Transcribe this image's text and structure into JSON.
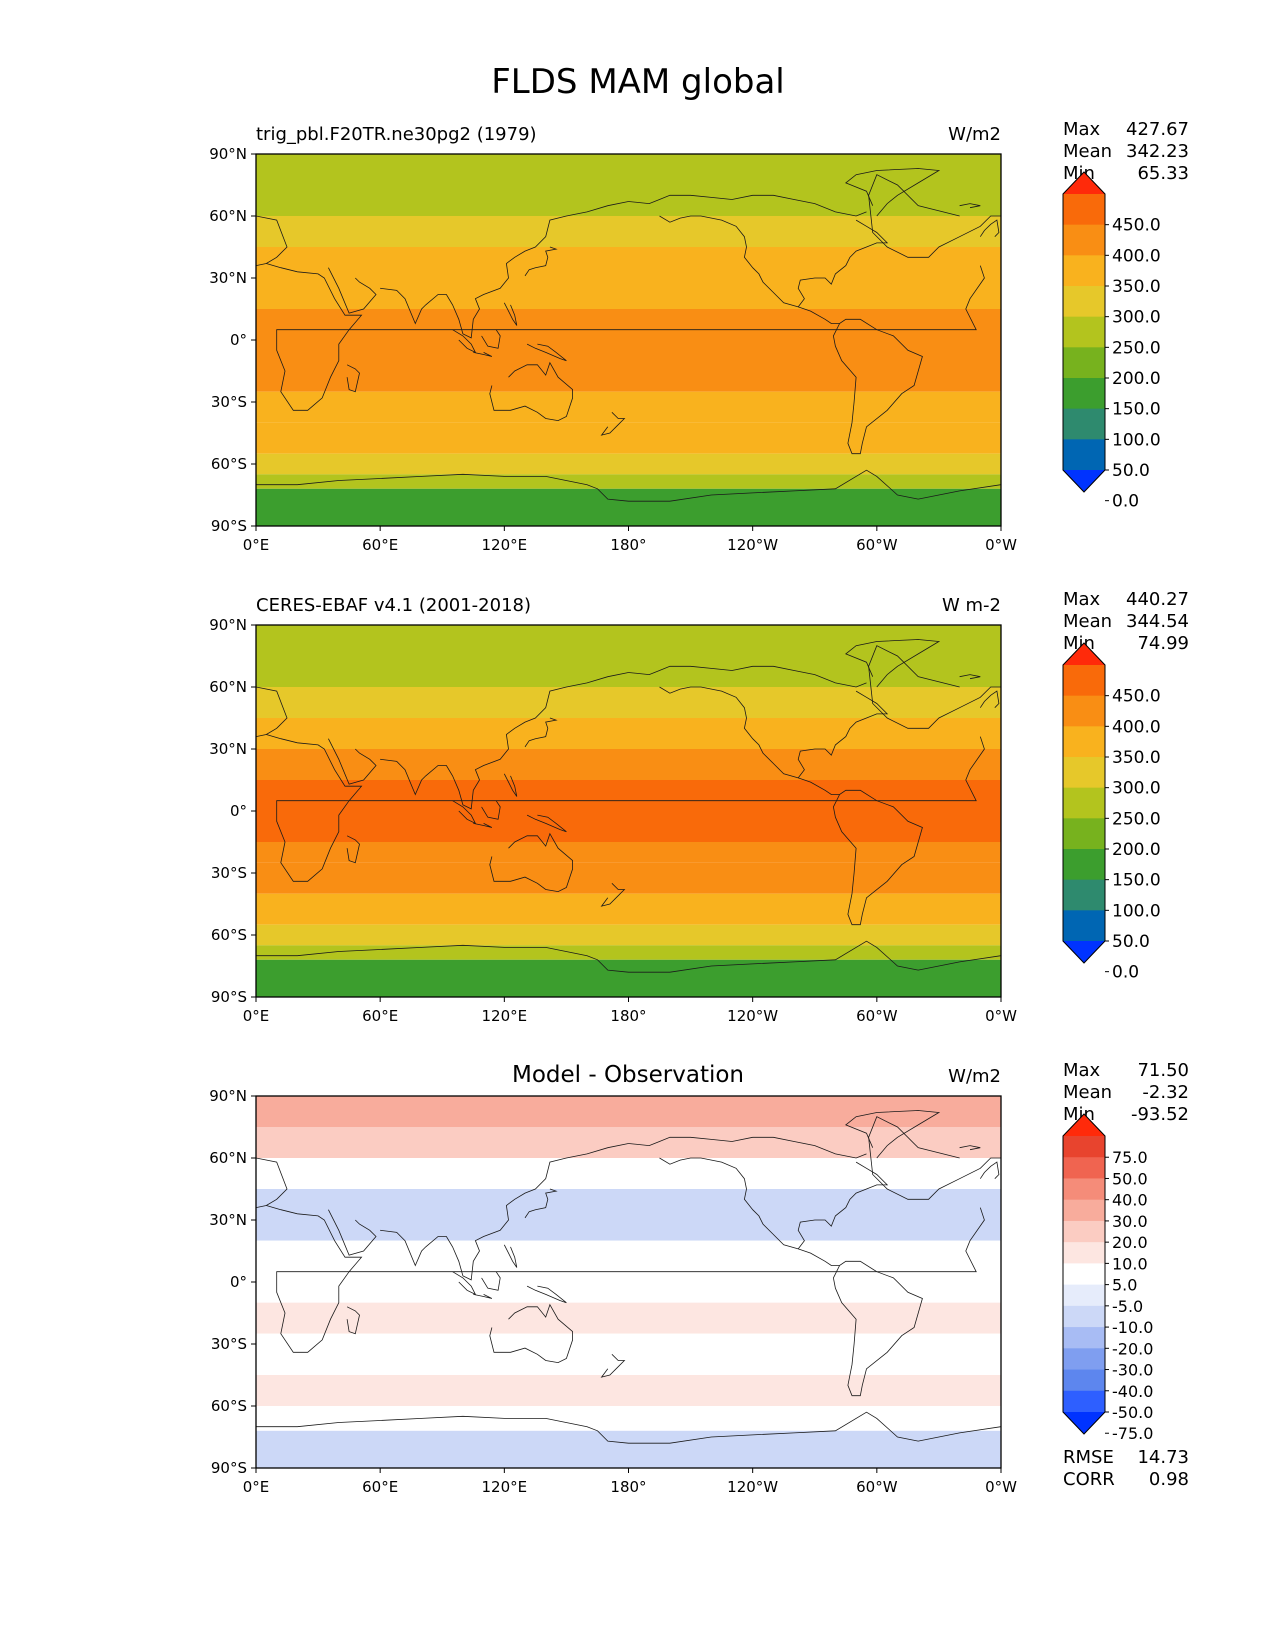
{
  "figure_title": "FLDS MAM global",
  "colors": {
    "abs_levels": [
      "#0033ff",
      "#0066b3",
      "#2e8a6e",
      "#3c9e2e",
      "#77b21e",
      "#b3c41e",
      "#e6c82a",
      "#f9b21e",
      "#f98e14",
      "#f96a0a",
      "#ff2a0a"
    ],
    "diff_levels": [
      "#0033ff",
      "#2e5fff",
      "#5d86ee",
      "#7f9ef0",
      "#a8bcf4",
      "#ccd8f7",
      "#e6ecfb",
      "#ffffff",
      "#fde6e1",
      "#fbccc2",
      "#f8ac9c",
      "#f58c79",
      "#f06450",
      "#e8442e",
      "#ff2a0a"
    ],
    "coast": "#1a1a1a"
  },
  "chart_data": [
    {
      "type": "heatmap",
      "title": "",
      "left_title": "trig_pbl.F20TR.ne30pg2 (1979)",
      "units": "W/m2",
      "stats": {
        "max_label": "Max",
        "max": "427.67",
        "mean_label": "Mean",
        "mean": "342.23",
        "min_label": "Min",
        "min": "65.33"
      },
      "xticks": [
        "0°E",
        "60°E",
        "120°E",
        "180°",
        "120°W",
        "60°W",
        "0°W"
      ],
      "yticks": [
        "90°N",
        "60°N",
        "30°N",
        "0°",
        "30°S",
        "60°S",
        "90°S"
      ],
      "xlim": [
        0,
        360
      ],
      "ylim": [
        -90,
        90
      ],
      "colorbar": {
        "labels": [
          "450.0",
          "400.0",
          "350.0",
          "300.0",
          "250.0",
          "200.0",
          "150.0",
          "100.0",
          "50.0",
          "0.0"
        ],
        "extend": "both"
      },
      "zonal_bands": [
        {
          "lat": [
            60,
            90
          ],
          "value": 220
        },
        {
          "lat": [
            45,
            60
          ],
          "value": 260
        },
        {
          "lat": [
            30,
            45
          ],
          "value": 300
        },
        {
          "lat": [
            15,
            30
          ],
          "value": 340
        },
        {
          "lat": [
            -15,
            15
          ],
          "value": 395
        },
        {
          "lat": [
            -25,
            -15
          ],
          "value": 360
        },
        {
          "lat": [
            -40,
            -25
          ],
          "value": 340
        },
        {
          "lat": [
            -55,
            -40
          ],
          "value": 300
        },
        {
          "lat": [
            -65,
            -55
          ],
          "value": 270
        },
        {
          "lat": [
            -72,
            -65
          ],
          "value": 200
        },
        {
          "lat": [
            -90,
            -72
          ],
          "value": 120
        }
      ]
    },
    {
      "type": "heatmap",
      "title": "",
      "left_title": "CERES-EBAF v4.1 (2001-2018)",
      "units": "W m-2",
      "stats": {
        "max_label": "Max",
        "max": "440.27",
        "mean_label": "Mean",
        "mean": "344.54",
        "min_label": "Min",
        "min": "74.99"
      },
      "xticks": [
        "0°E",
        "60°E",
        "120°E",
        "180°",
        "120°W",
        "60°W",
        "0°W"
      ],
      "yticks": [
        "90°N",
        "60°N",
        "30°N",
        "0°",
        "30°S",
        "60°S",
        "90°S"
      ],
      "xlim": [
        0,
        360
      ],
      "ylim": [
        -90,
        90
      ],
      "colorbar": {
        "labels": [
          "450.0",
          "400.0",
          "350.0",
          "300.0",
          "250.0",
          "200.0",
          "150.0",
          "100.0",
          "50.0",
          "0.0"
        ],
        "extend": "both"
      },
      "zonal_bands": [
        {
          "lat": [
            60,
            90
          ],
          "value": 210
        },
        {
          "lat": [
            45,
            60
          ],
          "value": 260
        },
        {
          "lat": [
            30,
            45
          ],
          "value": 310
        },
        {
          "lat": [
            15,
            30
          ],
          "value": 360
        },
        {
          "lat": [
            -15,
            15
          ],
          "value": 400
        },
        {
          "lat": [
            -25,
            -15
          ],
          "value": 370
        },
        {
          "lat": [
            -40,
            -25
          ],
          "value": 350
        },
        {
          "lat": [
            -55,
            -40
          ],
          "value": 310
        },
        {
          "lat": [
            -65,
            -55
          ],
          "value": 270
        },
        {
          "lat": [
            -72,
            -65
          ],
          "value": 200
        },
        {
          "lat": [
            -90,
            -72
          ],
          "value": 140
        }
      ]
    },
    {
      "type": "heatmap",
      "title": "Model - Observation",
      "left_title": "",
      "units": "W/m2",
      "stats": {
        "max_label": "Max",
        "max": "71.50",
        "mean_label": "Mean",
        "mean": "-2.32",
        "min_label": "Min",
        "min": "-93.52"
      },
      "extra_stats": {
        "rmse_label": "RMSE",
        "rmse": "14.73",
        "corr_label": "CORR",
        "corr": "0.98"
      },
      "xticks": [
        "0°E",
        "60°E",
        "120°E",
        "180°",
        "120°W",
        "60°W",
        "0°W"
      ],
      "yticks": [
        "90°N",
        "60°N",
        "30°N",
        "0°",
        "30°S",
        "60°S",
        "90°S"
      ],
      "xlim": [
        0,
        360
      ],
      "ylim": [
        -90,
        90
      ],
      "colorbar": {
        "labels": [
          "75.0",
          "50.0",
          "40.0",
          "30.0",
          "20.0",
          "10.0",
          "5.0",
          "-5.0",
          "-10.0",
          "-20.0",
          "-30.0",
          "-40.0",
          "-50.0",
          "-75.0"
        ],
        "extend": "both"
      },
      "zonal_bands": [
        {
          "lat": [
            75,
            90
          ],
          "value": 22
        },
        {
          "lat": [
            60,
            75
          ],
          "value": 15
        },
        {
          "lat": [
            45,
            60
          ],
          "value": 2
        },
        {
          "lat": [
            20,
            45
          ],
          "value": -12
        },
        {
          "lat": [
            5,
            20
          ],
          "value": 3
        },
        {
          "lat": [
            -10,
            5
          ],
          "value": -4
        },
        {
          "lat": [
            -25,
            -10
          ],
          "value": 8
        },
        {
          "lat": [
            -45,
            -25
          ],
          "value": 2
        },
        {
          "lat": [
            -60,
            -45
          ],
          "value": 8
        },
        {
          "lat": [
            -72,
            -60
          ],
          "value": 4
        },
        {
          "lat": [
            -90,
            -72
          ],
          "value": -12
        }
      ]
    }
  ]
}
